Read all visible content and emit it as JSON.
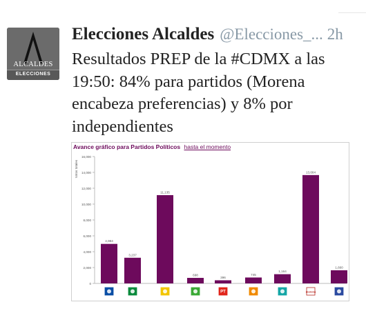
{
  "tweet": {
    "display_name": "Elecciones Alcaldes",
    "handle": "@Elecciones_...",
    "time": "2h",
    "text": "Resultados PREP de la #CDMX a las 19:50: 84% para partidos (Morena encabeza preferencias) y 8% por independientes",
    "avatar": {
      "brand": "ALCALDES",
      "subtitle": "ELECCIONES",
      "bg_color": "#6b6b6b"
    }
  },
  "chart_header": {
    "title": "Avance gráfico para Partidos Políticos",
    "link": "hasta el momento"
  },
  "chart_data": {
    "type": "bar",
    "ylabel": "Votos totales",
    "ylim": [
      0,
      16000
    ],
    "yticks": [
      0,
      2000,
      4000,
      6000,
      8000,
      10000,
      12000,
      14000,
      16000
    ],
    "ytick_labels": [
      "0",
      "2,000",
      "4,000",
      "6,000",
      "8,000",
      "10,000",
      "12,000",
      "14,000",
      "16,000"
    ],
    "bar_color": "#6d0a5c",
    "categories": [
      "PAN",
      "PRI",
      "PRD",
      "PVEM",
      "PT",
      "MC",
      "NA",
      "Morena",
      "Independientes"
    ],
    "values": [
      4984,
      3237,
      11135,
      698,
      396,
      745,
      1164,
      13664,
      1660
    ],
    "value_labels": [
      "4,984",
      "3,237",
      "11,135",
      "698",
      "396",
      "745",
      "1,164",
      "13,664",
      "1,660"
    ],
    "grid": false
  },
  "party_logos": [
    {
      "name": "pan-logo",
      "color": "#0a4ea5"
    },
    {
      "name": "pri-logo",
      "color": "#0a8a3c"
    },
    {
      "name": "prd-logo",
      "color": "#f2c500"
    },
    {
      "name": "pvem-logo",
      "color": "#3aa935"
    },
    {
      "name": "pt-logo",
      "color": "#e1251b",
      "text": "PT"
    },
    {
      "name": "mc-logo",
      "color": "#f08a00"
    },
    {
      "name": "na-logo",
      "color": "#14a6a6"
    },
    {
      "name": "morena-logo",
      "color": "#b5261e",
      "text": "morena"
    },
    {
      "name": "independientes-logo",
      "color": "#2b4aa0"
    }
  ]
}
